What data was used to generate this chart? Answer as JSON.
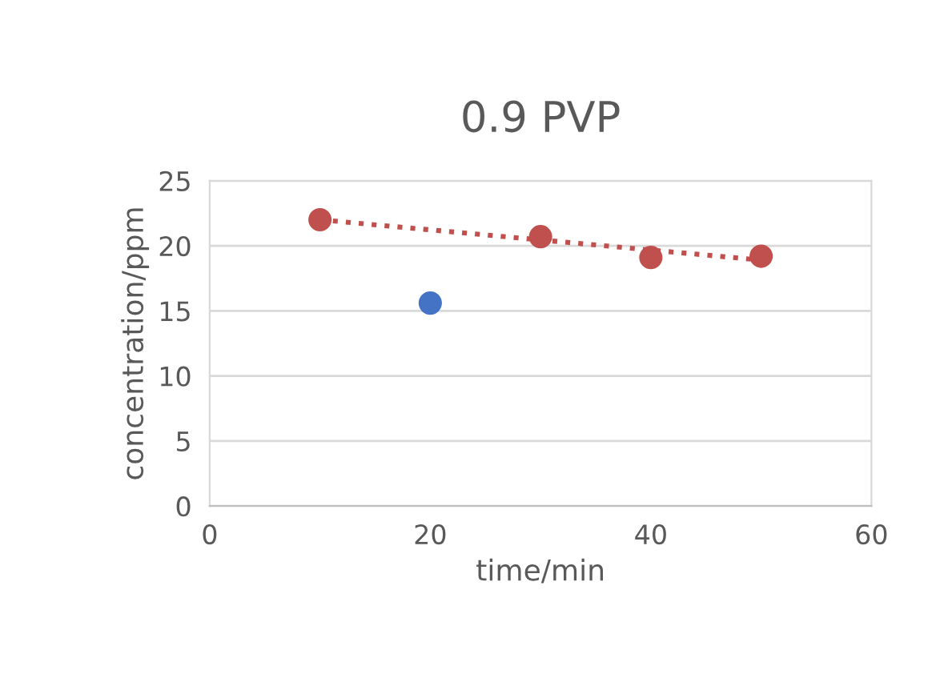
{
  "chart_data": {
    "type": "scatter",
    "title": "0.9 PVP",
    "xlabel": "time/min",
    "ylabel": "concentration/ppm",
    "series": [
      {
        "marker": "circle",
        "color": "#4472c4",
        "x": [
          20
        ],
        "values": [
          15.6
        ]
      },
      {
        "marker": "circle",
        "color": "#c0504d",
        "x": [
          10,
          30,
          40,
          50
        ],
        "values": [
          22.0,
          20.7,
          19.1,
          19.2
        ]
      },
      {
        "type": "line",
        "line_style": "dotted",
        "marker": "none",
        "color": "#c0504d",
        "x": [
          10,
          50
        ],
        "values": [
          22.0,
          18.9
        ]
      }
    ],
    "xlim": [
      0,
      60
    ],
    "xticks": [
      0,
      20,
      40,
      60
    ],
    "ylim": [
      0,
      25
    ],
    "yticks": [
      0,
      5,
      10,
      15,
      20,
      25
    ],
    "grid": "y",
    "legend": false
  }
}
